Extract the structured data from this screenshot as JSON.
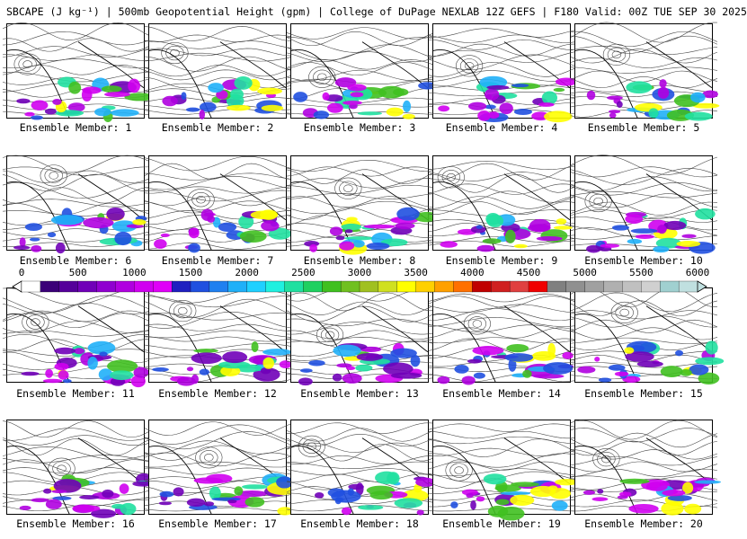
{
  "title": "SBCAPE (J kg⁻¹) | 500mb Geopotential Height (gpm) | College of DuPage NEXLAB 12Z GEFS | F180 Valid: 00Z TUE SEP 30 2025",
  "members": [
    "Ensemble Member: 1",
    "Ensemble Member: 2",
    "Ensemble Member: 3",
    "Ensemble Member: 4",
    "Ensemble Member: 5",
    "Ensemble Member: 6",
    "Ensemble Member: 7",
    "Ensemble Member: 8",
    "Ensemble Member: 9",
    "Ensemble Member: 10",
    "Ensemble Member: 11",
    "Ensemble Member: 12",
    "Ensemble Member: 13",
    "Ensemble Member: 14",
    "Ensemble Member: 15",
    "Ensemble Member: 16",
    "Ensemble Member: 17",
    "Ensemble Member: 18",
    "Ensemble Member: 19",
    "Ensemble Member: 20"
  ],
  "colorbar": {
    "ticks": [
      "0",
      "500",
      "1000",
      "1500",
      "2000",
      "2500",
      "3000",
      "3500",
      "4000",
      "4500",
      "5000",
      "5500",
      "6000"
    ],
    "colors": [
      "#ffffff",
      "#3b0078",
      "#55009a",
      "#7000b8",
      "#9000d0",
      "#b000e0",
      "#d000f0",
      "#e000f8",
      "#2020c0",
      "#2050e0",
      "#2080f0",
      "#20b0f8",
      "#20d0ff",
      "#20f0e0",
      "#20e0a0",
      "#20d060",
      "#40c020",
      "#70c020",
      "#a0c020",
      "#d0e020",
      "#ffff00",
      "#ffd000",
      "#ffa000",
      "#ff7000",
      "#c00000",
      "#d02020",
      "#e04040",
      "#f00000",
      "#808080",
      "#909090",
      "#a0a0a0",
      "#b0b0b0",
      "#c0c0c0",
      "#d0d0d0",
      "#a0d0d0",
      "#c0e0e0"
    ]
  }
}
